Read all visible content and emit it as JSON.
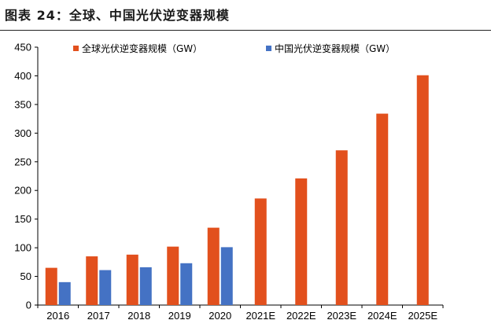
{
  "header": {
    "title": "图表 24：全球、中国光伏逆变器规模"
  },
  "colors": {
    "global": "#E2501D",
    "china": "#4472C4",
    "axis": "#000000"
  },
  "chart_data": {
    "type": "bar",
    "title": "",
    "xlabel": "",
    "ylabel": "",
    "categories": [
      "2016",
      "2017",
      "2018",
      "2019",
      "2020",
      "2021E",
      "2022E",
      "2023E",
      "2024E",
      "2025E"
    ],
    "series": [
      {
        "name": "全球光伏逆变器规模（GW）",
        "values": [
          65,
          85,
          88,
          102,
          135,
          186,
          221,
          270,
          334,
          401
        ]
      },
      {
        "name": "中国光伏逆变器规模（GW）",
        "values": [
          40,
          61,
          66,
          73,
          101,
          null,
          null,
          null,
          null,
          null
        ]
      }
    ],
    "ylim": [
      0,
      450
    ],
    "yticks": [
      0,
      50,
      100,
      150,
      200,
      250,
      300,
      350,
      400,
      450
    ],
    "grid": false,
    "legend_position": "top"
  }
}
